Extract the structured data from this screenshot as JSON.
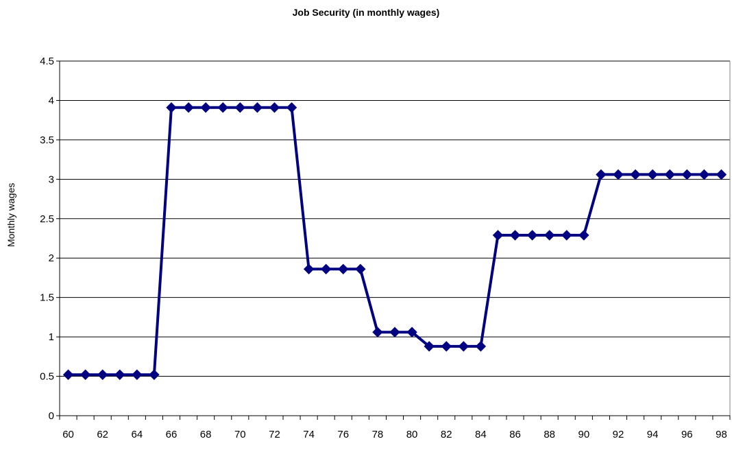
{
  "chart_data": {
    "type": "line",
    "title": "Job Security (in monthly wages)",
    "xlabel": "",
    "ylabel": "Monthly wages",
    "ylim": [
      0,
      4.5
    ],
    "yticks": [
      0,
      0.5,
      1,
      1.5,
      2,
      2.5,
      3,
      3.5,
      4,
      4.5
    ],
    "ytick_labels": [
      "0",
      "0.5",
      "1",
      "1.5",
      "2",
      "2.5",
      "3",
      "3.5",
      "4",
      "4.5"
    ],
    "xlim": [
      60,
      98
    ],
    "xtick_labels": [
      "60",
      "62",
      "64",
      "66",
      "68",
      "70",
      "72",
      "74",
      "76",
      "78",
      "80",
      "82",
      "84",
      "86",
      "88",
      "90",
      "92",
      "94",
      "96",
      "98"
    ],
    "grid": true,
    "legend": "none",
    "series": [
      {
        "x": [
          60,
          61,
          62,
          63,
          64,
          65,
          66,
          67,
          68,
          69,
          70,
          71,
          72,
          73,
          74,
          75,
          76,
          77,
          78,
          79,
          80,
          81,
          82,
          83,
          84,
          85,
          86,
          87,
          88,
          89,
          90,
          91,
          92,
          93,
          94,
          95,
          96,
          97,
          98
        ],
        "values": [
          0.52,
          0.52,
          0.52,
          0.52,
          0.52,
          0.52,
          3.91,
          3.91,
          3.91,
          3.91,
          3.91,
          3.91,
          3.91,
          3.91,
          1.86,
          1.86,
          1.86,
          1.86,
          1.06,
          1.06,
          1.06,
          0.88,
          0.88,
          0.88,
          0.88,
          2.29,
          2.29,
          2.29,
          2.29,
          2.29,
          2.29,
          3.06,
          3.06,
          3.06,
          3.06,
          3.06,
          3.06,
          3.06,
          3.06
        ],
        "color": "#000080",
        "marker": "diamond"
      }
    ]
  }
}
